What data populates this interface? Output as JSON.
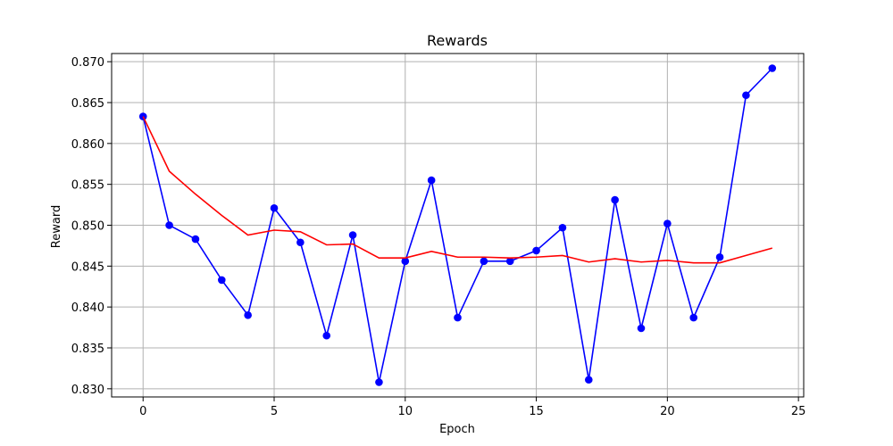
{
  "chart_data": {
    "type": "line",
    "title": "Rewards",
    "xlabel": "Epoch",
    "ylabel": "Reward",
    "xlim": [
      -1.2,
      25.2
    ],
    "ylim": [
      0.829,
      0.871
    ],
    "xticks": [
      0,
      5,
      10,
      15,
      20,
      25
    ],
    "xtick_labels": [
      "0",
      "5",
      "10",
      "15",
      "20",
      "25"
    ],
    "yticks": [
      0.83,
      0.835,
      0.84,
      0.845,
      0.85,
      0.855,
      0.86,
      0.865,
      0.87
    ],
    "ytick_labels": [
      "0.830",
      "0.835",
      "0.840",
      "0.845",
      "0.850",
      "0.855",
      "0.860",
      "0.865",
      "0.870"
    ],
    "grid": true,
    "x": [
      0,
      1,
      2,
      3,
      4,
      5,
      6,
      7,
      8,
      9,
      10,
      11,
      12,
      13,
      14,
      15,
      16,
      17,
      18,
      19,
      20,
      21,
      22,
      23,
      24
    ],
    "series": [
      {
        "color": "#0000ff",
        "marker": "circle",
        "values": [
          0.8633,
          0.85,
          0.8483,
          0.8433,
          0.839,
          0.8521,
          0.8479,
          0.8365,
          0.8488,
          0.8308,
          0.8456,
          0.8555,
          0.8387,
          0.8456,
          0.8456,
          0.8469,
          0.8497,
          0.8311,
          0.8531,
          0.8374,
          0.8502,
          0.8387,
          0.8461,
          0.8659,
          0.8692
        ]
      },
      {
        "color": "#ff0000",
        "marker": "none",
        "values": [
          0.8633,
          0.8566,
          0.8538,
          0.8512,
          0.8488,
          0.8494,
          0.8492,
          0.8476,
          0.8477,
          0.846,
          0.846,
          0.8468,
          0.8461,
          0.8461,
          0.846,
          0.8461,
          0.8463,
          0.8455,
          0.8459,
          0.8455,
          0.8457,
          0.8454,
          0.8454,
          0.8463,
          0.8472
        ]
      }
    ]
  }
}
